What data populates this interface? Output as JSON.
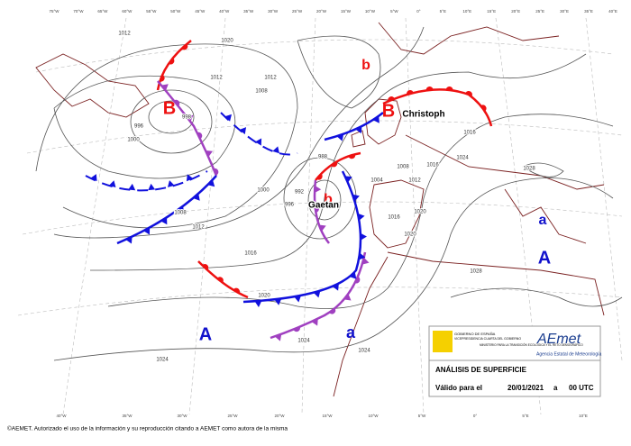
{
  "pressure_centers": [
    "B",
    "b",
    "B",
    "b",
    "A",
    "a",
    "a",
    "A"
  ],
  "storm_names": [
    "Christoph",
    "Gaetan"
  ],
  "isobar_labels": [
    "1012",
    "1020",
    "1012",
    "1012",
    "1008",
    "998",
    "996",
    "1000",
    "988",
    "1000",
    "992",
    "996",
    "1004",
    "1008",
    "1012",
    "1016",
    "1020",
    "1008",
    "1012",
    "1016",
    "1020",
    "1016",
    "1020",
    "1024",
    "1028",
    "1028",
    "1024",
    "1024",
    "1016",
    "1024"
  ],
  "top_longitudes": [
    "75°W",
    "70°W",
    "65°W",
    "60°W",
    "55°W",
    "50°W",
    "45°W",
    "40°W",
    "35°W",
    "30°W",
    "25°W",
    "20°W",
    "15°W",
    "10°W",
    "5°W",
    "0°",
    "5°E",
    "10°E",
    "15°E",
    "20°E",
    "25°E",
    "30°E",
    "35°E",
    "40°E"
  ],
  "bottom_longitudes": [
    "40°W",
    "35°W",
    "30°W",
    "25°W",
    "20°W",
    "15°W",
    "10°W",
    "5°W",
    "0°",
    "5°E",
    "10°E"
  ],
  "info_box": {
    "government": "GOBIERNO DE ESPAÑA",
    "vice": "VICEPRESIDENCIA CUARTA DEL GOBIERNO",
    "ministry": "MINISTERIO PARA LA TRANSICIÓN ECOLÓGICA Y EL RETO DEMOGRÁFICO",
    "brand": "AEmet",
    "brand_sub": "Agencia Estatal de Meteorología",
    "title": "ANÁLISIS DE SUPERFICIE",
    "valid_label": "Válido para el",
    "date": "20/01/2021",
    "connector": "a",
    "time": "00 UTC"
  },
  "footer": "©AEMET. Autorizado el uso de la información y su reproducción citando a AEMET como autora de la misma"
}
